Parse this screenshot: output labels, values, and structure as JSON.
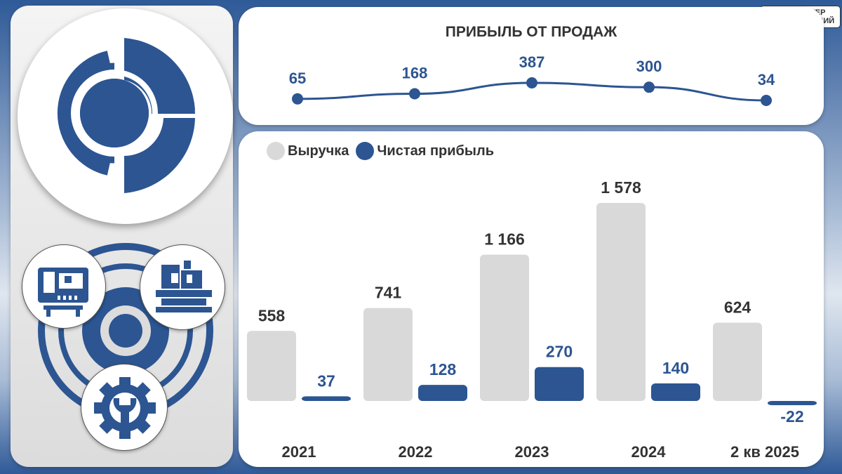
{
  "brand": {
    "line1": "БУНКЕР",
    "line2": "ОБЛИГАЦИЙ"
  },
  "colors": {
    "accent": "#2c5592",
    "revenue": "#d9d9d9",
    "text": "#333333"
  },
  "icons": [
    "company-logo-icon",
    "generator-icon",
    "machine-tool-icon",
    "wrench-gear-icon",
    "bank-building-icon"
  ],
  "chart_data": [
    {
      "type": "line",
      "title": "ПРИБЫЛЬ ОТ ПРОДАЖ",
      "categories": [
        "2021",
        "2022",
        "2023",
        "2024",
        "2 кв 2025"
      ],
      "values": [
        65,
        168,
        387,
        300,
        34
      ],
      "xlabel": "",
      "ylabel": ""
    },
    {
      "type": "bar",
      "title": "",
      "categories": [
        "2021",
        "2022",
        "2023",
        "2024",
        "2 кв 2025"
      ],
      "series": [
        {
          "name": "Выручка",
          "values": [
            558,
            741,
            1166,
            1578,
            624
          ],
          "labels": [
            "558",
            "741",
            "1 166",
            "1 578",
            "624"
          ]
        },
        {
          "name": "Чистая прибыль",
          "values": [
            37,
            128,
            270,
            140,
            -22
          ],
          "labels": [
            "37",
            "128",
            "270",
            "140",
            "-22"
          ]
        }
      ],
      "legend": "top-left",
      "xlabel": "",
      "ylabel": ""
    }
  ]
}
